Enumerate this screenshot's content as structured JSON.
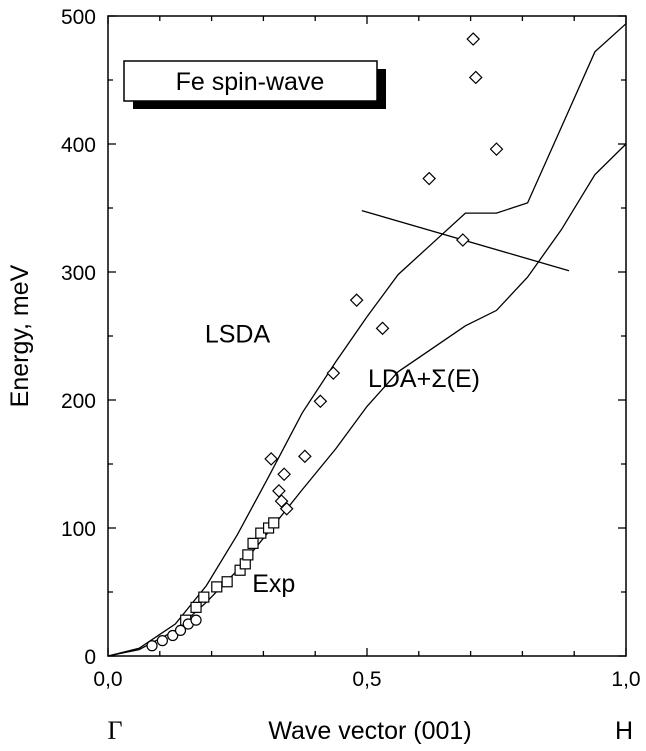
{
  "chart_data": {
    "type": "line",
    "title": "Fe spin-wave",
    "xlabel": "Wave vector (001)",
    "ylabel": "Energy, meV",
    "xlim": [
      0,
      1
    ],
    "ylim": [
      0,
      500
    ],
    "x_ticks": [
      {
        "value": 0,
        "label": "0,0"
      },
      {
        "value": 0.5,
        "label": "0,5"
      },
      {
        "value": 1,
        "label": "1,0"
      }
    ],
    "y_ticks": [
      {
        "value": 0,
        "label": "0"
      },
      {
        "value": 100,
        "label": "100"
      },
      {
        "value": 200,
        "label": "200"
      },
      {
        "value": 300,
        "label": "300"
      },
      {
        "value": 400,
        "label": "400"
      },
      {
        "value": 500,
        "label": "500"
      }
    ],
    "point_labels": {
      "left": "Γ",
      "right": "H"
    },
    "series": [
      {
        "name": "LSDA",
        "style": "line",
        "x": [
          0,
          0.06,
          0.13,
          0.19,
          0.25,
          0.31,
          0.375,
          0.44,
          0.5,
          0.56,
          0.625,
          0.69,
          0.75,
          0.81,
          0.875,
          0.94,
          1.0
        ],
        "y": [
          0,
          6,
          25,
          55,
          95,
          140,
          190,
          230,
          265,
          298,
          322,
          346,
          346,
          354,
          413,
          472,
          494
        ]
      },
      {
        "name": "LDA+Σ(E)",
        "style": "line",
        "x": [
          0,
          0.06,
          0.13,
          0.19,
          0.25,
          0.31,
          0.375,
          0.44,
          0.5,
          0.56,
          0.625,
          0.69,
          0.75,
          0.81,
          0.875,
          0.94,
          1.0
        ],
        "y": [
          0,
          5,
          20,
          42,
          67,
          97,
          130,
          162,
          195,
          222,
          240,
          258,
          270,
          296,
          333,
          376,
          400
        ]
      },
      {
        "name": "",
        "style": "line",
        "x": [
          0.49,
          0.89
        ],
        "y": [
          348,
          301
        ]
      },
      {
        "name": "",
        "style": "diamond",
        "x": [
          0.315,
          0.33,
          0.335,
          0.34,
          0.345,
          0.38,
          0.41,
          0.435,
          0.48,
          0.53,
          0.62,
          0.685,
          0.705,
          0.71,
          0.75
        ],
        "y": [
          154,
          129,
          121,
          142,
          115,
          156,
          199,
          221,
          278,
          256,
          373,
          325,
          482,
          452,
          396
        ]
      },
      {
        "name": "",
        "style": "square",
        "x": [
          0.15,
          0.17,
          0.185,
          0.21,
          0.23,
          0.255,
          0.265,
          0.27,
          0.28,
          0.295,
          0.31,
          0.32
        ],
        "y": [
          28,
          38,
          46,
          54,
          58,
          67,
          72,
          79,
          88,
          96,
          100,
          104
        ]
      },
      {
        "name": "",
        "style": "circle",
        "x": [
          0.085,
          0.105,
          0.125,
          0.14,
          0.155,
          0.17
        ],
        "y": [
          8,
          12,
          16,
          20,
          25,
          28
        ]
      }
    ],
    "annotations": [
      {
        "text": "LSDA",
        "x": 0.25,
        "y": 245
      },
      {
        "text": "LDA+Σ(E)",
        "x": 0.61,
        "y": 210
      },
      {
        "text": "Exp",
        "x": 0.32,
        "y": 50
      }
    ],
    "legend": "top-left",
    "grid": false
  }
}
